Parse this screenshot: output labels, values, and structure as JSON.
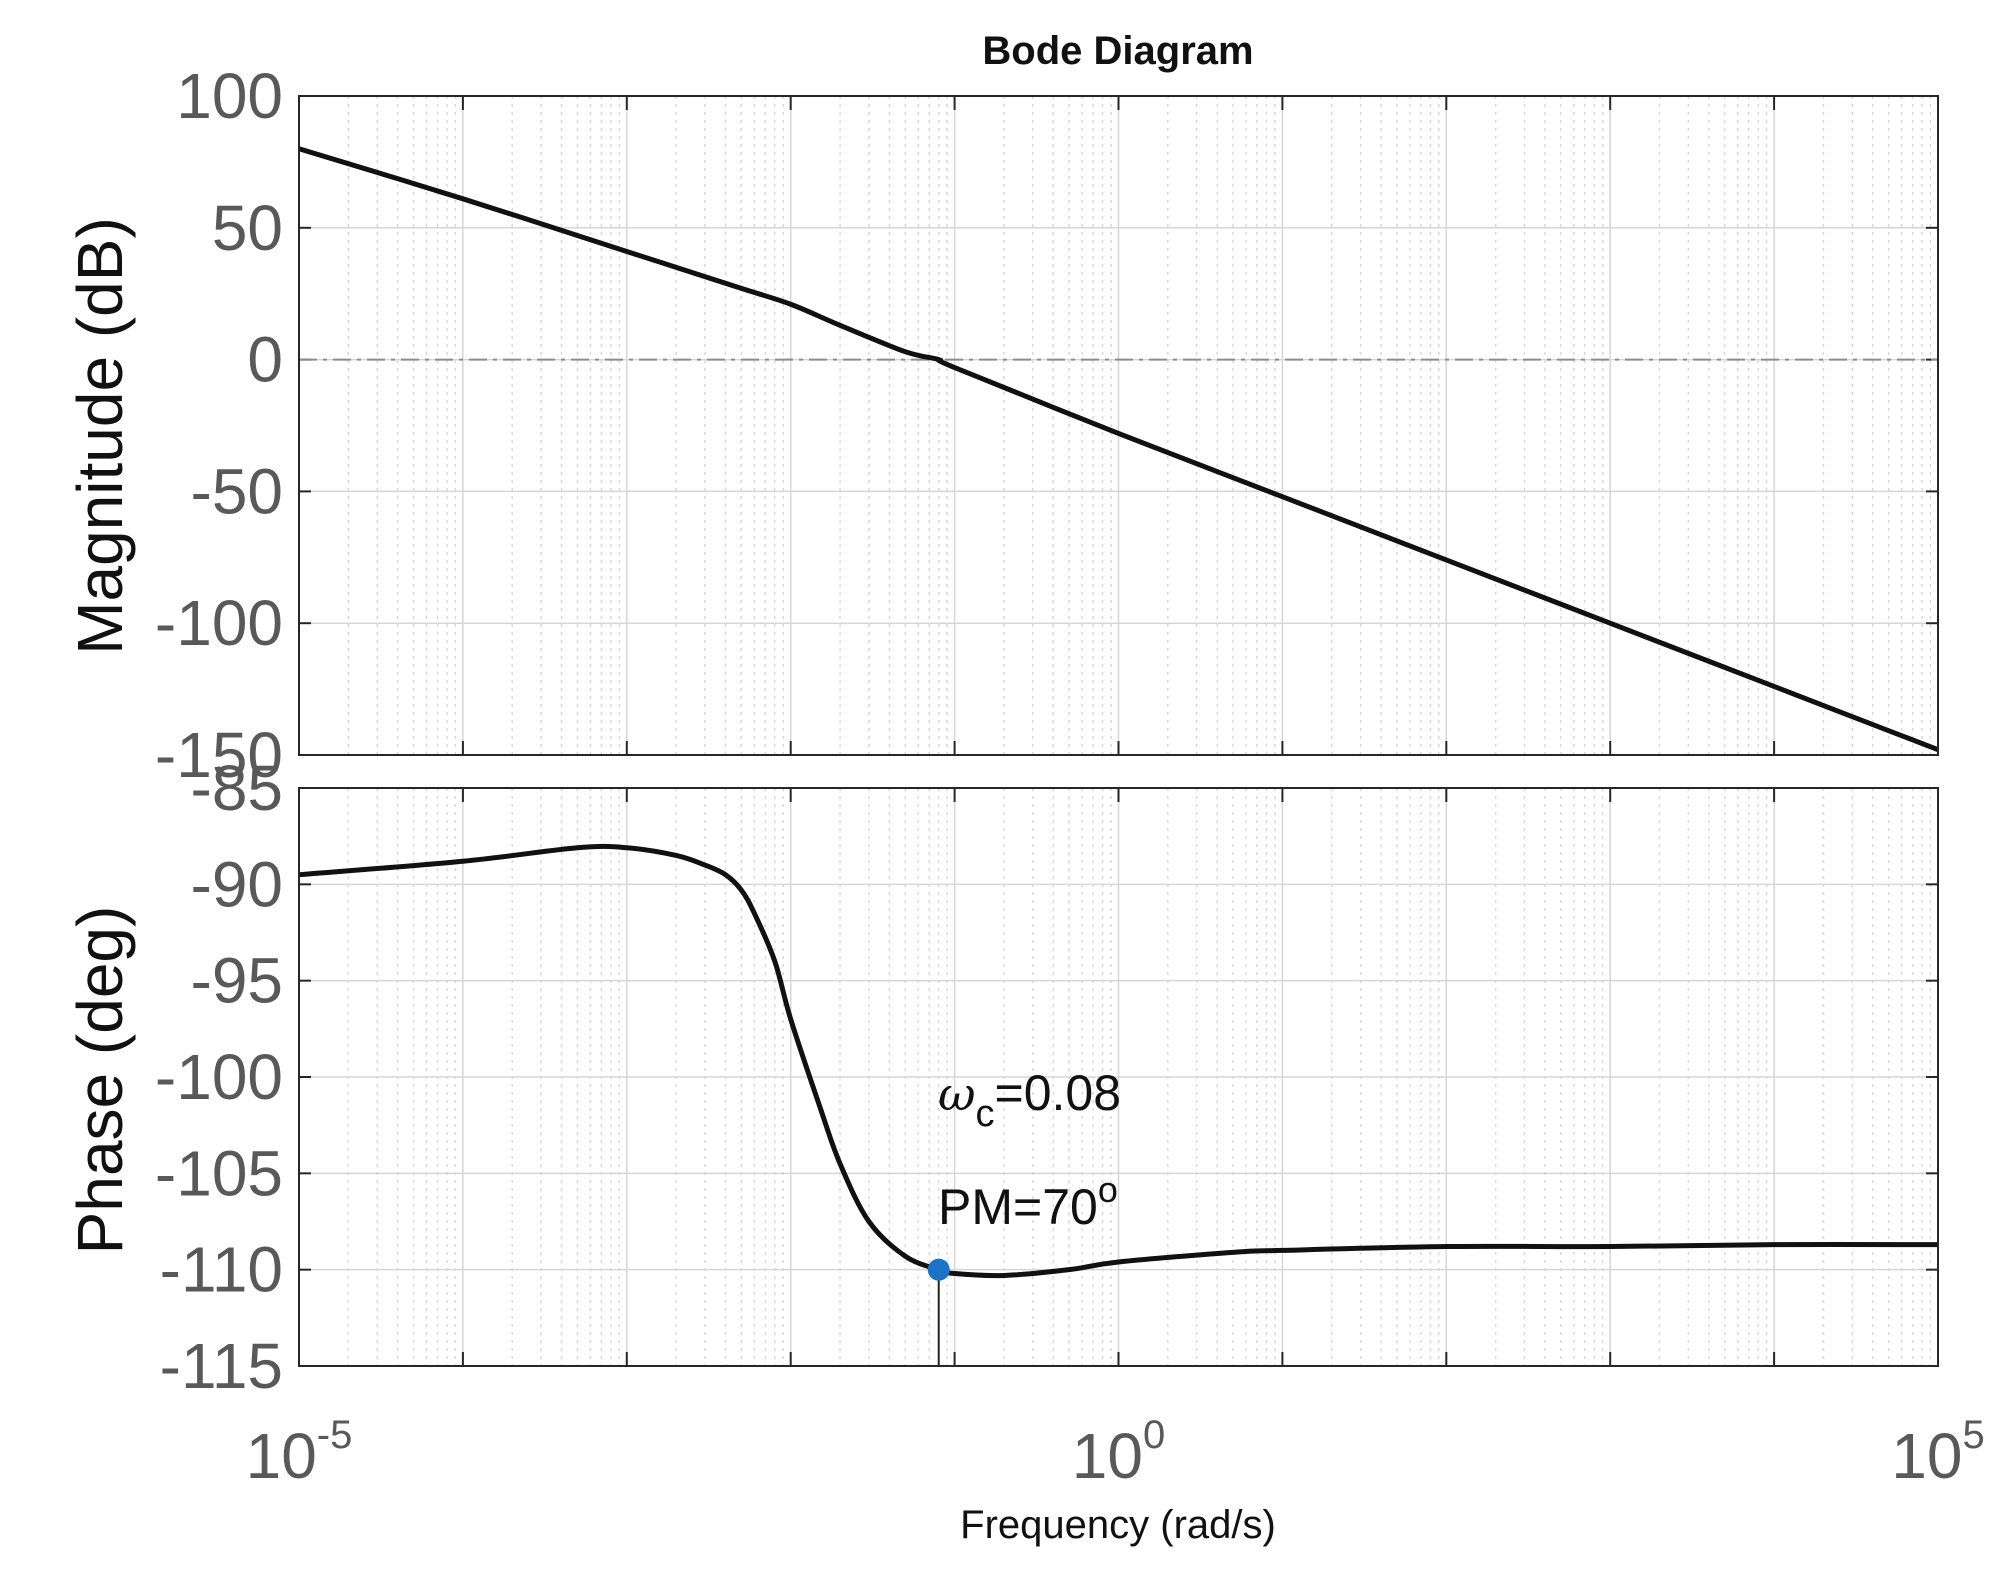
{
  "chart_data": {
    "type": "line",
    "title": "Bode Diagram",
    "xlabel": "Frequency  (rad/s)",
    "x_scale": "log",
    "xlim": [
      1e-05,
      100000
    ],
    "x_ticks": [
      {
        "base": "10",
        "exp": "-5"
      },
      {
        "base": "10",
        "exp": "0"
      },
      {
        "base": "10",
        "exp": "5"
      }
    ],
    "x_tick_values": [
      1e-05,
      1,
      100000
    ],
    "panels": [
      {
        "name": "magnitude",
        "ylabel": "Magnitude (dB)",
        "ylim": [
          -150,
          100
        ],
        "y_ticks": [
          "100",
          "50",
          "0",
          "-50",
          "-100",
          "-150"
        ],
        "y_tick_values": [
          100,
          50,
          0,
          -50,
          -100,
          -150
        ],
        "reference_line": 0,
        "series": [
          {
            "name": "Magnitude",
            "color": "#111111",
            "x": [
              1e-05,
              0.0001,
              0.001,
              0.002,
              0.005,
              0.01,
              0.02,
              0.05,
              0.08,
              0.1,
              1,
              10,
              100,
              1000,
              10000,
              100000
            ],
            "y": [
              80,
              61,
              41,
              35,
              27,
              21,
              13,
              3,
              0,
              -3,
              -28,
              -52,
              -76,
              -100,
              -124,
              -148
            ]
          }
        ]
      },
      {
        "name": "phase",
        "ylabel": "Phase (deg)",
        "ylim": [
          -115,
          -85
        ],
        "y_ticks": [
          "-85",
          "-90",
          "-95",
          "-100",
          "-105",
          "-110",
          "-115"
        ],
        "y_tick_values": [
          -85,
          -90,
          -95,
          -100,
          -105,
          -110,
          -115
        ],
        "series": [
          {
            "name": "Phase",
            "color": "#111111",
            "x": [
              1e-05,
              0.0001,
              0.0005,
              0.001,
              0.002,
              0.003,
              0.004,
              0.005,
              0.006,
              0.008,
              0.01,
              0.015,
              0.02,
              0.03,
              0.05,
              0.08,
              0.1,
              0.2,
              0.5,
              1,
              5,
              10,
              100,
              1000,
              10000,
              100000
            ],
            "y": [
              -89.5,
              -88.8,
              -88.1,
              -88.1,
              -88.5,
              -89.0,
              -89.5,
              -90.3,
              -91.5,
              -94.0,
              -97.0,
              -101.5,
              -104.5,
              -107.5,
              -109.3,
              -110.0,
              -110.2,
              -110.3,
              -110.0,
              -109.6,
              -109.1,
              -109.0,
              -108.8,
              -108.8,
              -108.7,
              -108.7
            ]
          }
        ],
        "marker": {
          "x": 0.08,
          "y": -110,
          "color": "#1a73c6"
        }
      }
    ],
    "annotations": [
      {
        "omega": "ω",
        "sub": "c",
        "text": "=0.08"
      },
      {
        "text": "PM=70",
        "sup": "o"
      }
    ]
  }
}
